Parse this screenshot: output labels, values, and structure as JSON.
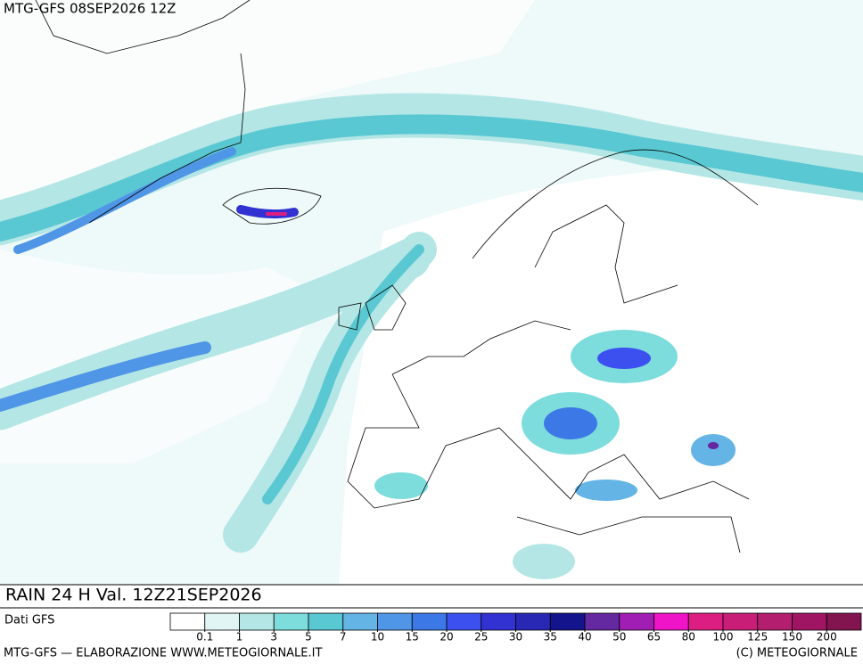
{
  "header": {
    "run": "MTG-GFS 08SEP2026 12Z"
  },
  "map": {
    "title": "RAIN 24 H Val. 12Z21SEP2026"
  },
  "legend": {
    "source": "Dati GFS",
    "colors": [
      "#ffffff",
      "#e1f5f5",
      "#b4e6e6",
      "#7ddcdc",
      "#5ac8d2",
      "#64b4e6",
      "#5096e6",
      "#3c78e6",
      "#3c50f0",
      "#3232d2",
      "#2828b4",
      "#14148c",
      "#6428a0",
      "#a01eb4",
      "#f014c8",
      "#dc1e82",
      "#c81e78",
      "#b41e6e",
      "#a01464",
      "#821450"
    ],
    "thresholds": [
      0.1,
      1,
      3,
      5,
      7,
      10,
      15,
      20,
      25,
      30,
      35,
      40,
      50,
      65,
      80,
      100,
      125,
      150,
      200
    ]
  },
  "footer": {
    "credit": "MTG-GFS — ELABORAZIONE WWW.METEOGIORNALE.IT",
    "copyright": "(C) METEOGIORNALE"
  }
}
